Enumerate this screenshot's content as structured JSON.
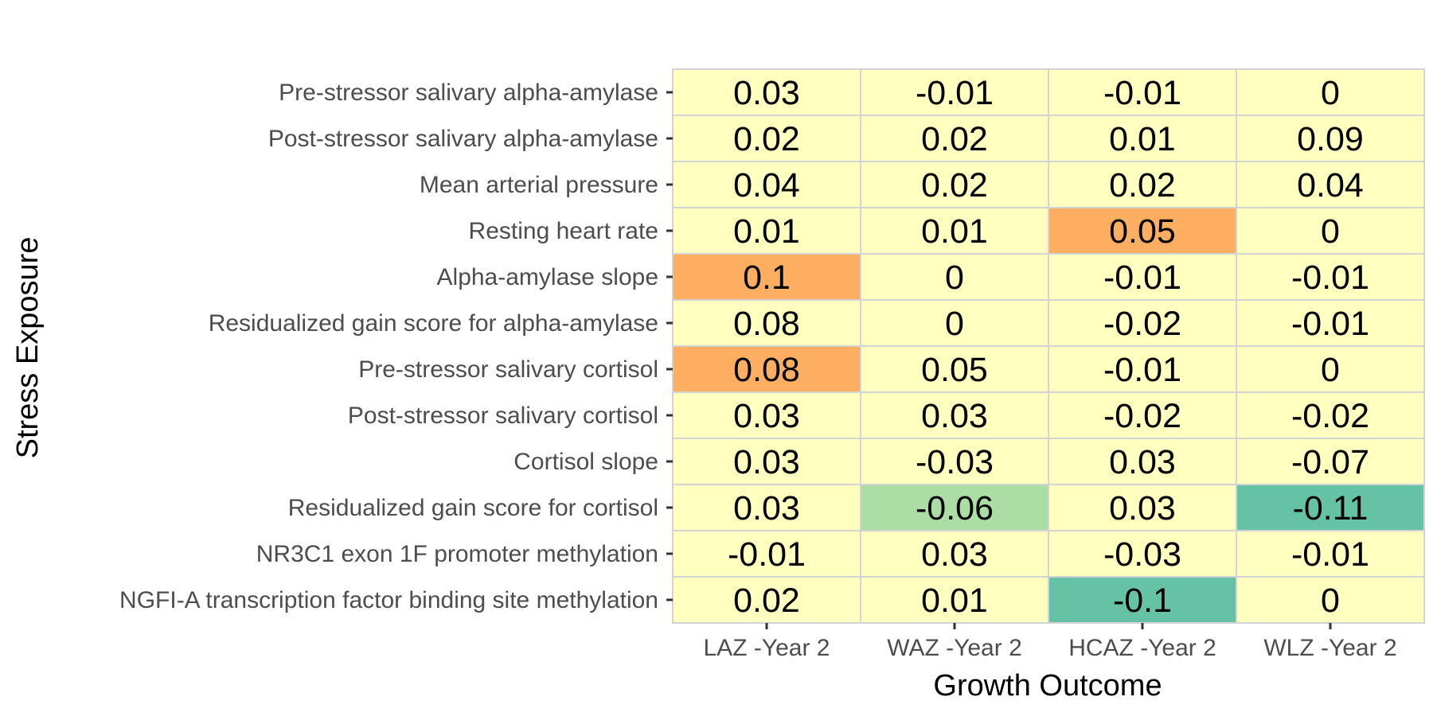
{
  "chart_data": {
    "type": "heatmap",
    "title": "",
    "xlabel": "Growth Outcome",
    "ylabel": "Stress Exposure",
    "x_categories": [
      "LAZ -Year 2",
      "WAZ -Year 2",
      "HCAZ -Year 2",
      "WLZ -Year 2"
    ],
    "y_categories": [
      "Pre-stressor salivary alpha-amylase",
      "Post-stressor salivary alpha-amylase",
      "Mean arterial pressure",
      "Resting heart rate",
      "Alpha-amylase slope",
      "Residualized gain score for alpha-amylase",
      "Pre-stressor salivary cortisol",
      "Post-stressor salivary cortisol",
      "Cortisol slope",
      "Residualized gain score for cortisol",
      "NR3C1 exon 1F promoter methylation",
      "NGFI-A transcription factor binding site methylation"
    ],
    "values": [
      [
        0.03,
        -0.01,
        -0.01,
        0
      ],
      [
        0.02,
        0.02,
        0.01,
        0.09
      ],
      [
        0.04,
        0.02,
        0.02,
        0.04
      ],
      [
        0.01,
        0.01,
        0.05,
        0
      ],
      [
        0.1,
        0,
        -0.01,
        -0.01
      ],
      [
        0.08,
        0,
        -0.02,
        -0.01
      ],
      [
        0.08,
        0.05,
        -0.01,
        0
      ],
      [
        0.03,
        0.03,
        -0.02,
        -0.02
      ],
      [
        0.03,
        -0.03,
        0.03,
        -0.07
      ],
      [
        0.03,
        -0.06,
        0.03,
        -0.11
      ],
      [
        -0.01,
        0.03,
        -0.03,
        -0.01
      ],
      [
        0.02,
        0.01,
        -0.1,
        0
      ]
    ],
    "value_labels": [
      [
        "0.03",
        "-0.01",
        "-0.01",
        "0"
      ],
      [
        "0.02",
        "0.02",
        "0.01",
        "0.09"
      ],
      [
        "0.04",
        "0.02",
        "0.02",
        "0.04"
      ],
      [
        "0.01",
        "0.01",
        "0.05",
        "0"
      ],
      [
        "0.1",
        "0",
        "-0.01",
        "-0.01"
      ],
      [
        "0.08",
        "0",
        "-0.02",
        "-0.01"
      ],
      [
        "0.08",
        "0.05",
        "-0.01",
        "0"
      ],
      [
        "0.03",
        "0.03",
        "-0.02",
        "-0.02"
      ],
      [
        "0.03",
        "-0.03",
        "0.03",
        "-0.07"
      ],
      [
        "0.03",
        "-0.06",
        "0.03",
        "-0.11"
      ],
      [
        "-0.01",
        "0.03",
        "-0.03",
        "-0.01"
      ],
      [
        "0.02",
        "0.01",
        "-0.1",
        "0"
      ]
    ],
    "cell_colors": [
      [
        "#ffffbf",
        "#ffffbf",
        "#ffffbf",
        "#ffffbf"
      ],
      [
        "#ffffbf",
        "#ffffbf",
        "#ffffbf",
        "#ffffbf"
      ],
      [
        "#ffffbf",
        "#ffffbf",
        "#ffffbf",
        "#ffffbf"
      ],
      [
        "#ffffbf",
        "#ffffbf",
        "#fdae61",
        "#ffffbf"
      ],
      [
        "#fdae61",
        "#ffffbf",
        "#ffffbf",
        "#ffffbf"
      ],
      [
        "#ffffbf",
        "#ffffbf",
        "#ffffbf",
        "#ffffbf"
      ],
      [
        "#fdae61",
        "#ffffbf",
        "#ffffbf",
        "#ffffbf"
      ],
      [
        "#ffffbf",
        "#ffffbf",
        "#ffffbf",
        "#ffffbf"
      ],
      [
        "#ffffbf",
        "#ffffbf",
        "#ffffbf",
        "#ffffbf"
      ],
      [
        "#ffffbf",
        "#abdda4",
        "#ffffbf",
        "#66c2a5"
      ],
      [
        "#ffffbf",
        "#ffffbf",
        "#ffffbf",
        "#ffffbf"
      ],
      [
        "#ffffbf",
        "#ffffbf",
        "#66c2a5",
        "#ffffbf"
      ]
    ],
    "grid_color": "#d3d3d3",
    "legend": "none"
  }
}
